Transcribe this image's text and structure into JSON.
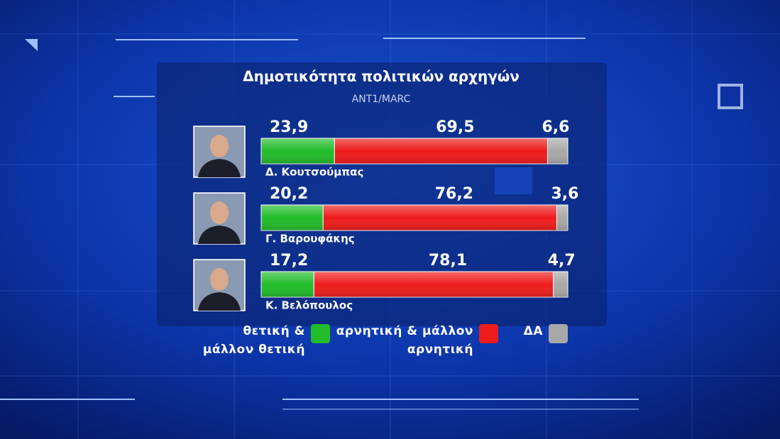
{
  "chart_data": {
    "type": "stacked-bar",
    "orientation": "horizontal",
    "title": "Δημοτικότητα πολιτικών αρχηγών",
    "subtitle": "ANT1/MARC",
    "categories": [
      "Δ. Κουτσούμπας",
      "Γ. Βαρουφάκης",
      "Κ. Βελόπουλος"
    ],
    "series": [
      {
        "name": "θετική & μάλλον θετική",
        "color": "#22bb2a",
        "values": [
          23.9,
          20.2,
          17.2
        ],
        "value_labels": [
          "23,9",
          "20,2",
          "17,2"
        ]
      },
      {
        "name": "αρνητική & μάλλον αρνητική",
        "color": "#ee1c1c",
        "values": [
          69.5,
          76.2,
          78.1
        ],
        "value_labels": [
          "69,5",
          "76,2",
          "78,1"
        ]
      },
      {
        "name": "ΔΑ",
        "color": "#a8a8a8",
        "values": [
          6.6,
          3.6,
          4.7
        ],
        "value_labels": [
          "6,6",
          "3,6",
          "4,7"
        ]
      }
    ]
  }
}
